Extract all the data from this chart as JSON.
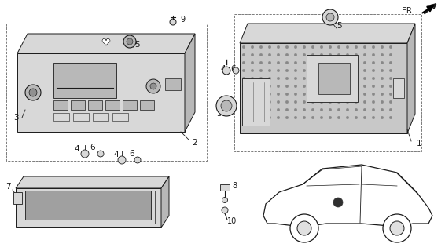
{
  "bg_color": "#ffffff",
  "line_color": "#1a1a1a",
  "fill_light": "#d8d8d8",
  "fill_mid": "#b8b8b8",
  "fill_dark": "#909090",
  "fill_white": "#f5f5f5"
}
